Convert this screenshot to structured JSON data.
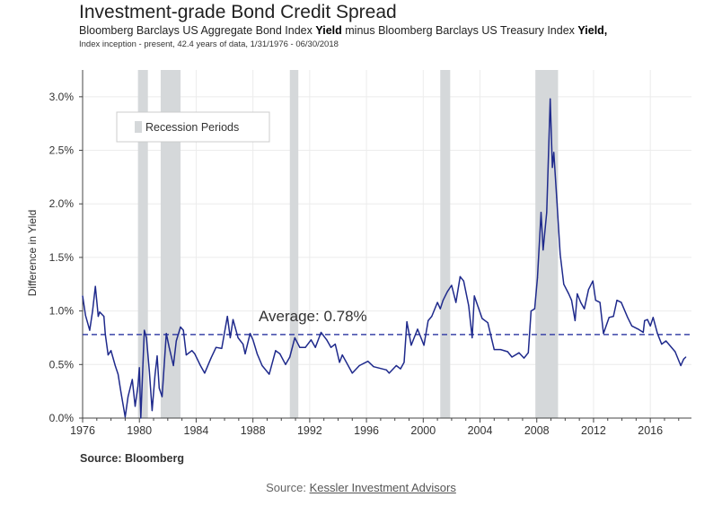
{
  "chart_data": {
    "type": "line",
    "title": "Investment-grade Bond Credit Spread",
    "subtitle_parts": [
      "Bloomberg Barclays US Aggregate Bond Index ",
      "Yield",
      " minus Bloomberg Barclays US Treasury Index ",
      "Yield,"
    ],
    "note": "Index inception - present, 42.4 years of data, 1/31/1976 - 06/30/2018",
    "ylabel": "Difference in Yield",
    "xlabel": "",
    "xlim": [
      1976,
      2018.9
    ],
    "ylim": [
      0,
      3.25
    ],
    "x_ticks": [
      "1976",
      "1980",
      "1984",
      "1988",
      "1992",
      "1996",
      "2000",
      "2004",
      "2008",
      "2012",
      "2016"
    ],
    "y_ticks": [
      "0.0%",
      "0.5%",
      "1.0%",
      "1.5%",
      "2.0%",
      "2.5%",
      "3.0%"
    ],
    "grid": true,
    "legend": {
      "label": "Recession Periods",
      "placement": "top-left"
    },
    "recessions": [
      [
        1979.9,
        1980.6
      ],
      [
        1981.5,
        1982.9
      ],
      [
        1990.6,
        1991.2
      ],
      [
        2001.2,
        2001.9
      ],
      [
        2007.9,
        2009.5
      ]
    ],
    "average": {
      "value": 0.78,
      "label": "Average: 0.78%"
    },
    "series": [
      {
        "color": "#1f2a8c",
        "x": [
          1976.0,
          1976.2,
          1976.5,
          1976.7,
          1976.9,
          1977.1,
          1977.2,
          1977.5,
          1977.6,
          1977.8,
          1978.0,
          1978.3,
          1978.5,
          1978.7,
          1979.0,
          1979.2,
          1979.5,
          1979.7,
          1979.9,
          1980.0,
          1980.1,
          1980.35,
          1980.5,
          1980.7,
          1980.9,
          1981.1,
          1981.25,
          1981.4,
          1981.6,
          1981.9,
          1982.1,
          1982.4,
          1982.6,
          1982.9,
          1983.1,
          1983.3,
          1983.7,
          1983.9,
          1984.3,
          1984.6,
          1985.05,
          1985.4,
          1985.8,
          1986.2,
          1986.4,
          1986.6,
          1986.95,
          1987.3,
          1987.45,
          1987.8,
          1988.0,
          1988.3,
          1988.65,
          1989.15,
          1989.6,
          1989.9,
          1990.3,
          1990.6,
          1990.95,
          1991.3,
          1991.7,
          1992.1,
          1992.4,
          1992.8,
          1993.2,
          1993.5,
          1993.8,
          1994.1,
          1994.3,
          1995.0,
          1995.5,
          1996.1,
          1996.5,
          1997.4,
          1997.6,
          1998.1,
          1998.4,
          1998.65,
          1998.85,
          1999.15,
          1999.6,
          2000.05,
          2000.35,
          2000.6,
          2001.0,
          2001.2,
          2001.4,
          2001.7,
          2002.0,
          2002.3,
          2002.6,
          2002.85,
          2003.2,
          2003.45,
          2003.6,
          2004.15,
          2004.55,
          2005.0,
          2005.45,
          2005.95,
          2006.25,
          2006.75,
          2007.1,
          2007.4,
          2007.6,
          2007.85,
          2008.05,
          2008.3,
          2008.45,
          2008.7,
          2008.95,
          2009.1,
          2009.2,
          2009.4,
          2009.65,
          2009.9,
          2010.25,
          2010.45,
          2010.7,
          2010.85,
          2011.1,
          2011.35,
          2011.65,
          2011.95,
          2012.15,
          2012.45,
          2012.7,
          2013.1,
          2013.4,
          2013.65,
          2013.95,
          2014.4,
          2014.7,
          2015.15,
          2015.5,
          2015.6,
          2015.8,
          2016.0,
          2016.2,
          2016.5,
          2016.8,
          2017.1,
          2017.75,
          2018.15,
          2018.35,
          2018.5
        ],
        "values": [
          1.14,
          0.96,
          0.82,
          1.0,
          1.23,
          0.95,
          0.99,
          0.95,
          0.78,
          0.59,
          0.63,
          0.49,
          0.41,
          0.24,
          0.01,
          0.2,
          0.36,
          0.11,
          0.3,
          0.47,
          0.0,
          0.82,
          0.75,
          0.44,
          0.07,
          0.4,
          0.58,
          0.28,
          0.2,
          0.79,
          0.66,
          0.49,
          0.72,
          0.85,
          0.82,
          0.59,
          0.63,
          0.6,
          0.49,
          0.42,
          0.56,
          0.66,
          0.65,
          0.95,
          0.75,
          0.92,
          0.75,
          0.69,
          0.6,
          0.79,
          0.73,
          0.6,
          0.49,
          0.41,
          0.63,
          0.6,
          0.5,
          0.57,
          0.75,
          0.66,
          0.66,
          0.73,
          0.66,
          0.8,
          0.73,
          0.66,
          0.69,
          0.52,
          0.59,
          0.42,
          0.49,
          0.53,
          0.48,
          0.45,
          0.42,
          0.49,
          0.46,
          0.52,
          0.9,
          0.68,
          0.83,
          0.68,
          0.91,
          0.95,
          1.08,
          1.02,
          1.1,
          1.18,
          1.24,
          1.08,
          1.32,
          1.28,
          1.05,
          0.75,
          1.14,
          0.93,
          0.89,
          0.64,
          0.64,
          0.62,
          0.57,
          0.61,
          0.56,
          0.61,
          1.0,
          1.02,
          1.31,
          1.92,
          1.57,
          1.92,
          2.98,
          2.34,
          2.48,
          2.06,
          1.53,
          1.25,
          1.16,
          1.1,
          0.91,
          1.16,
          1.08,
          1.02,
          1.2,
          1.28,
          1.1,
          1.08,
          0.79,
          0.94,
          0.95,
          1.1,
          1.08,
          0.94,
          0.86,
          0.83,
          0.8,
          0.91,
          0.92,
          0.86,
          0.94,
          0.79,
          0.69,
          0.72,
          0.62,
          0.49,
          0.55,
          0.57
        ]
      }
    ],
    "source": "Source: Bloomberg"
  },
  "footer": {
    "prefix": "Source: ",
    "link": "Kessler Investment Advisors"
  },
  "colors": {
    "line": "#1f2a8c",
    "recession": "#d5d8da",
    "grid": "#ececec"
  }
}
